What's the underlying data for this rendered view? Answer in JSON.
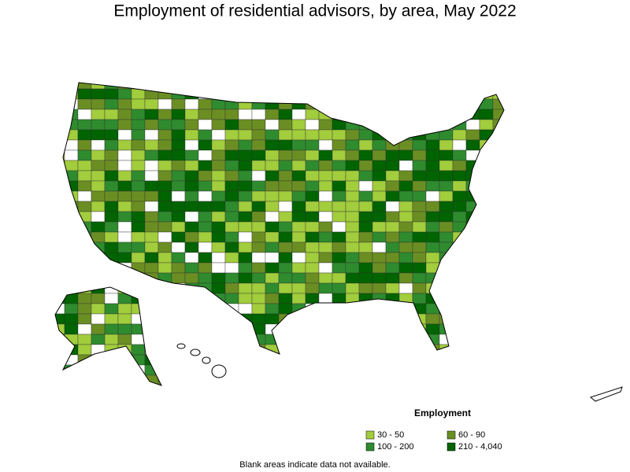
{
  "title": "Employment of residential advisors, by area, May 2022",
  "legend": {
    "title": "Employment",
    "items": [
      {
        "label": "30 - 50",
        "color": "#a2cd3c"
      },
      {
        "label": "60 - 90",
        "color": "#6b8e23"
      },
      {
        "label": "100 - 200",
        "color": "#2e8b2e"
      },
      {
        "label": "210 - 4,040",
        "color": "#006400"
      }
    ]
  },
  "note": "Blank areas indicate data not available."
}
